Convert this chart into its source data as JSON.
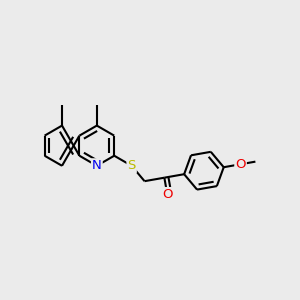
{
  "background_color": "#ebebeb",
  "bond_color": "#000000",
  "bond_width": 1.5,
  "dbo": 0.055,
  "atom_colors": {
    "N": "#0000ee",
    "S": "#bbbb00",
    "O": "#ee0000",
    "C": "#000000"
  },
  "font_size": 9.5,
  "figsize": [
    3.0,
    3.0
  ],
  "dpi": 100
}
